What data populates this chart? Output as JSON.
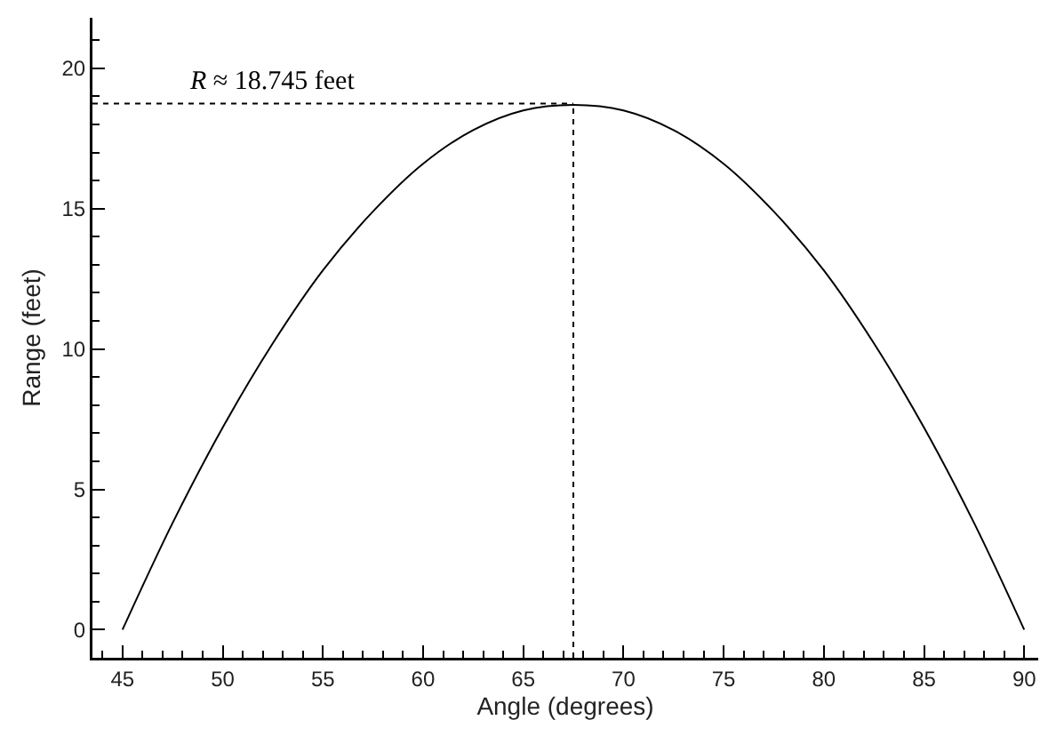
{
  "chart_data": {
    "type": "line",
    "xlabel": "Angle (degrees)",
    "ylabel": "Range (feet)",
    "x": [
      45,
      47.5,
      50,
      52.5,
      55,
      57.5,
      60,
      62.5,
      65,
      67.5,
      70,
      72.5,
      75,
      77.5,
      80,
      82.5,
      85,
      87.5,
      90
    ],
    "series": [
      {
        "color": "#000000",
        "values": [
          0,
          3.8,
          7.2,
          10.2,
          12.8,
          14.9,
          16.6,
          17.8,
          18.5,
          18.7,
          18.5,
          17.8,
          16.6,
          14.9,
          12.8,
          10.2,
          7.2,
          3.8,
          0
        ]
      }
    ],
    "xlim": [
      43.5,
      90.7
    ],
    "xticks": [
      45,
      50,
      55,
      60,
      65,
      70,
      75,
      80,
      85,
      90
    ],
    "ylim": [
      -1,
      21.8
    ],
    "yticks": [
      0,
      5,
      10,
      15,
      20
    ],
    "ref_lines": [
      {
        "axis": "y",
        "value": 18.745,
        "label": "R ≈ 18.745 feet",
        "line_style": "dotted"
      },
      {
        "axis": "x",
        "value": 67.5,
        "line_style": "dotted"
      }
    ],
    "grid": false,
    "marker": "none",
    "line_style": "solid"
  }
}
